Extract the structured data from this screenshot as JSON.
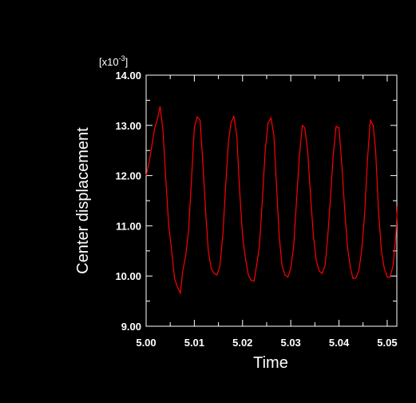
{
  "chart_data": {
    "type": "line",
    "title": "",
    "xlabel": "Time",
    "ylabel": "Center displacement",
    "y_scale_prefix": "[x10",
    "y_scale_exponent": "-3",
    "y_scale_suffix": "]",
    "xlim": [
      5.0,
      5.052
    ],
    "ylim": [
      9.0,
      14.0
    ],
    "x_ticks": [
      "5.00",
      "5.01",
      "5.02",
      "5.03",
      "5.04",
      "5.05"
    ],
    "x_tick_values": [
      5.0,
      5.01,
      5.02,
      5.03,
      5.04,
      5.05
    ],
    "y_ticks": [
      "9.00",
      "10.00",
      "11.00",
      "12.00",
      "13.00",
      "14.00"
    ],
    "y_tick_values": [
      9.0,
      10.0,
      11.0,
      12.0,
      13.0,
      14.0
    ],
    "grid": false,
    "colors": {
      "background": "#000000",
      "axes": "#ffffff",
      "series": "#ff0000"
    },
    "series": [
      {
        "color": "#ff0000",
        "x": [
          5.0,
          5.0006,
          5.0012,
          5.0018,
          5.0024,
          5.0029,
          5.0035,
          5.0041,
          5.0047,
          5.0053,
          5.0059,
          5.0065,
          5.0071,
          5.0076,
          5.0082,
          5.0088,
          5.0094,
          5.01,
          5.0106,
          5.0112,
          5.0118,
          5.0124,
          5.0129,
          5.0135,
          5.0141,
          5.0147,
          5.0153,
          5.0159,
          5.0165,
          5.0171,
          5.0176,
          5.0182,
          5.0188,
          5.0194,
          5.02,
          5.0206,
          5.0212,
          5.0218,
          5.0224,
          5.0229,
          5.0235,
          5.0241,
          5.0247,
          5.0253,
          5.0259,
          5.0265,
          5.0271,
          5.0276,
          5.0282,
          5.0288,
          5.0294,
          5.03,
          5.0306,
          5.0312,
          5.0318,
          5.0324,
          5.0329,
          5.0335,
          5.0341,
          5.0347,
          5.0353,
          5.0359,
          5.0365,
          5.0371,
          5.0376,
          5.0382,
          5.0388,
          5.0394,
          5.04,
          5.0406,
          5.0412,
          5.0418,
          5.0424,
          5.0429,
          5.0435,
          5.0441,
          5.0447,
          5.0453,
          5.0459,
          5.0465,
          5.0471,
          5.0476,
          5.0482,
          5.0488,
          5.0494,
          5.05,
          5.0506,
          5.0512,
          5.0518,
          5.0521
        ],
        "y": [
          12.0,
          12.25,
          12.6,
          12.95,
          13.15,
          13.38,
          12.9,
          11.9,
          11.0,
          10.5,
          9.95,
          9.78,
          9.66,
          10.1,
          10.4,
          10.9,
          11.9,
          12.95,
          13.17,
          13.1,
          12.2,
          11.2,
          10.5,
          10.15,
          10.05,
          10.02,
          10.2,
          10.8,
          11.8,
          12.7,
          13.05,
          13.18,
          12.8,
          11.7,
          10.8,
          10.35,
          10.02,
          9.91,
          9.9,
          10.2,
          10.6,
          11.5,
          12.5,
          13.05,
          13.15,
          12.8,
          11.7,
          10.8,
          10.2,
          10.02,
          9.98,
          10.15,
          10.6,
          11.5,
          12.4,
          13.0,
          12.95,
          12.5,
          11.6,
          10.8,
          10.3,
          10.1,
          10.05,
          10.2,
          10.7,
          11.5,
          12.4,
          12.98,
          12.95,
          12.2,
          11.3,
          10.55,
          10.15,
          9.95,
          9.96,
          10.1,
          10.5,
          11.2,
          12.3,
          13.1,
          13.0,
          12.5,
          11.3,
          10.5,
          10.15,
          9.98,
          9.98,
          10.2,
          10.8,
          11.4
        ]
      }
    ]
  }
}
